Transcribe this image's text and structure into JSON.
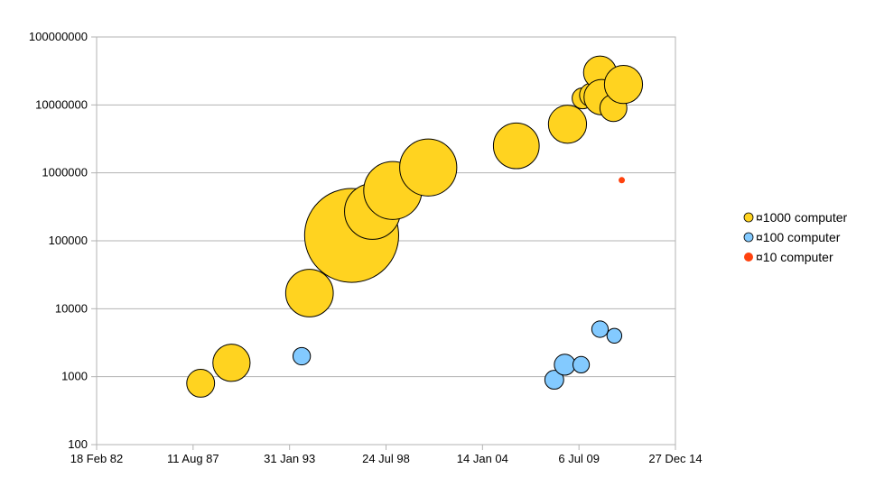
{
  "chart_data": {
    "type": "scatter",
    "subtype": "bubble",
    "title": "",
    "xlabel": "",
    "ylabel": "",
    "x_scale": "date",
    "y_scale": "log",
    "xlim": [
      "18 Feb 82",
      "27 Dec 14"
    ],
    "ylim": [
      100,
      100000000
    ],
    "grid": "horizontal",
    "x_tick_labels": [
      "18 Feb 82",
      "11 Aug 87",
      "31 Jan 93",
      "24 Jul 98",
      "14 Jan 04",
      "6 Jul 09",
      "27 Dec 14"
    ],
    "y_tick_labels": [
      "100",
      "1000",
      "10000",
      "100000",
      "1000000",
      "10000000",
      "100000000"
    ],
    "legend": {
      "position": "right"
    },
    "series": [
      {
        "name": "¤1000 computer",
        "color": "#FFD320",
        "points": [
          {
            "x": "1988-01-15",
            "y": 800,
            "size": 4.6
          },
          {
            "x": "1989-10-15",
            "y": 1600,
            "size": 8.2
          },
          {
            "x": "1994-03-20",
            "y": 17000,
            "size": 13.4
          },
          {
            "x": "1996-08-10",
            "y": 120000,
            "size": 52.3
          },
          {
            "x": "1997-10-15",
            "y": 270000,
            "size": 18.4
          },
          {
            "x": "1998-12-10",
            "y": 550000,
            "size": 19.9
          },
          {
            "x": "2000-12-15",
            "y": 1200000,
            "size": 19.3
          },
          {
            "x": "2005-12-15",
            "y": 2500000,
            "size": 12.4
          },
          {
            "x": "2008-11-10",
            "y": 5200000,
            "size": 8.6
          },
          {
            "x": "2009-09-20",
            "y": 12500000,
            "size": 2.6
          },
          {
            "x": "2010-03-20",
            "y": 14000000,
            "size": 3.3
          },
          {
            "x": "2010-09-15",
            "y": 30000000,
            "size": 6.4
          },
          {
            "x": "2010-10-20",
            "y": 13000000,
            "size": 7.4
          },
          {
            "x": "2011-06-20",
            "y": 9000000,
            "size": 4.3
          },
          {
            "x": "2012-01-15",
            "y": 20000000,
            "size": 8.6
          }
        ]
      },
      {
        "name": "¤100 computer",
        "color": "#83CAFF",
        "points": [
          {
            "x": "1993-10-10",
            "y": 2000,
            "size": 1.8
          },
          {
            "x": "2008-02-10",
            "y": 900,
            "size": 2.1
          },
          {
            "x": "2008-09-15",
            "y": 1500,
            "size": 2.6
          },
          {
            "x": "2009-08-20",
            "y": 1500,
            "size": 1.6
          },
          {
            "x": "2010-09-15",
            "y": 5000,
            "size": 1.6
          },
          {
            "x": "2011-07-10",
            "y": 4000,
            "size": 1.3
          }
        ]
      },
      {
        "name": "¤10 computer",
        "color": "#FF420E",
        "points": [
          {
            "x": "2011-12-10",
            "y": 780000,
            "size": 0.2
          }
        ]
      }
    ]
  }
}
